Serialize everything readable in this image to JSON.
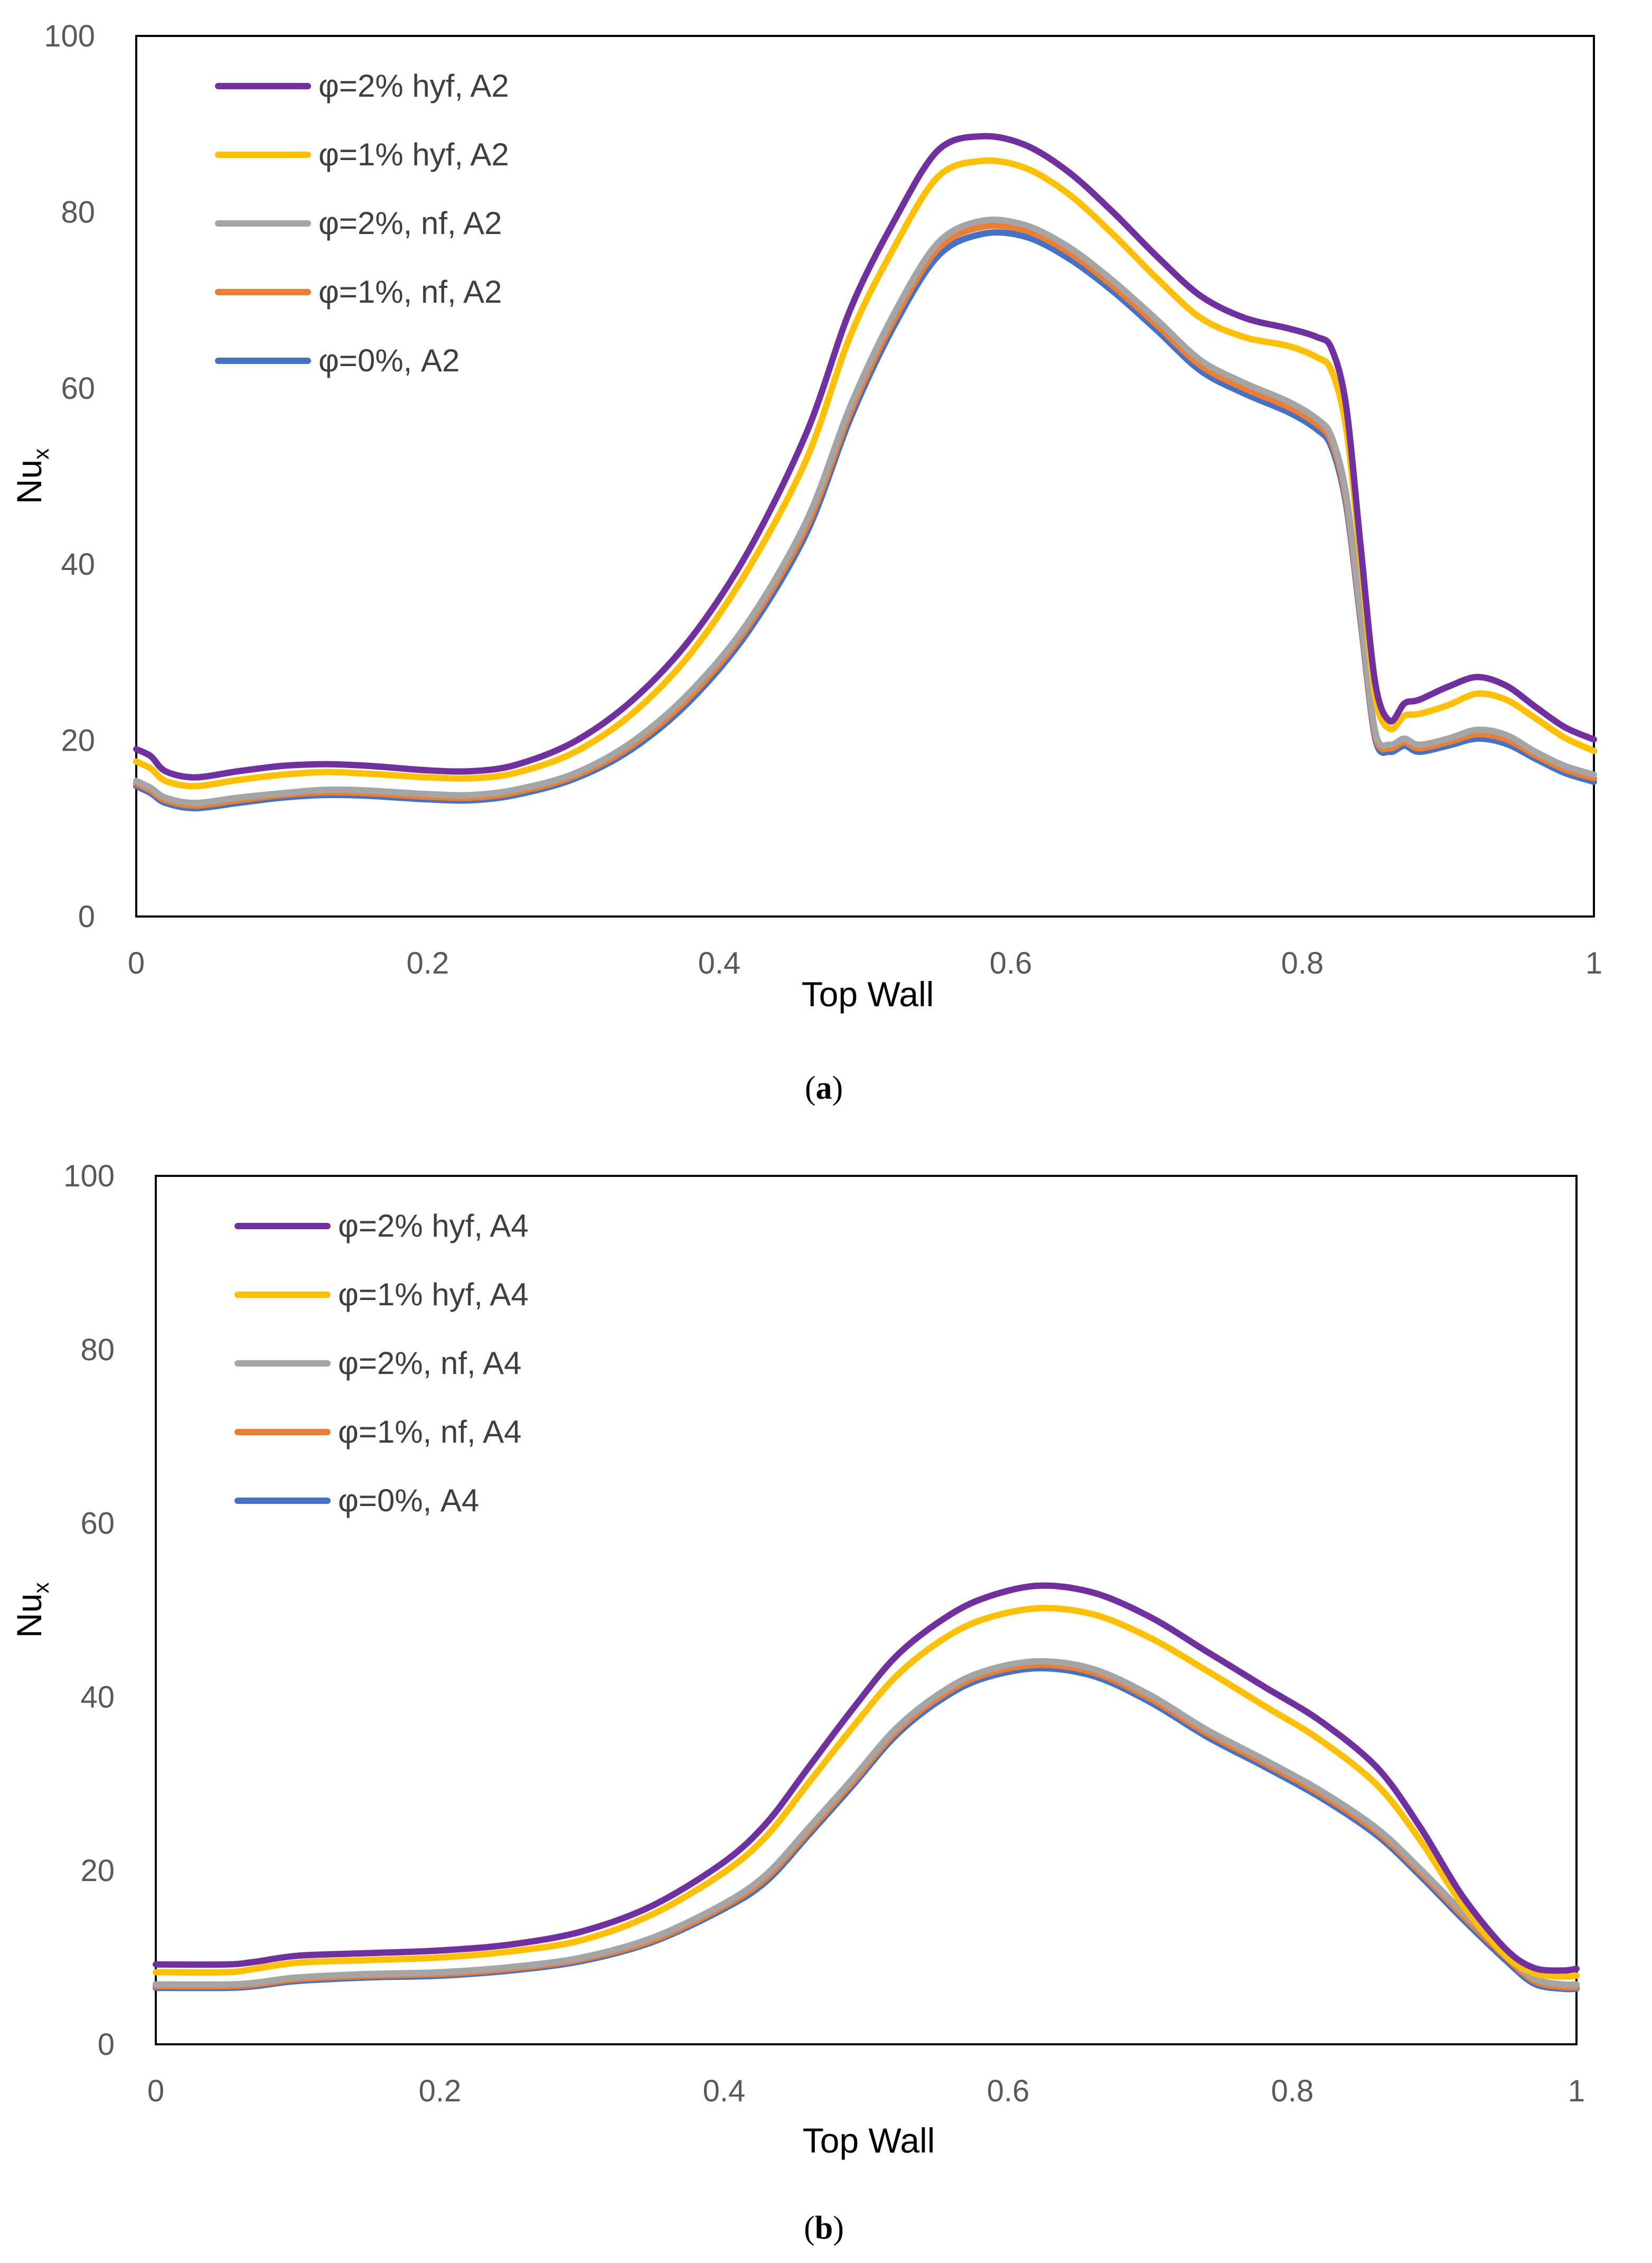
{
  "chart_data": [
    {
      "type": "line",
      "panel": "a",
      "caption_open": "(",
      "caption_letter": "a",
      "caption_close": ")",
      "xlabel": "Top Wall",
      "ylabel_main": "Nu",
      "ylabel_sub": "x",
      "xlim": [
        0,
        1
      ],
      "ylim": [
        0,
        100
      ],
      "xticks": [
        0,
        0.2,
        0.4,
        0.6,
        0.8,
        1
      ],
      "xtick_labels": [
        "0",
        "0.2",
        "0.4",
        "0.6",
        "0.8",
        "1"
      ],
      "yticks": [
        0,
        20,
        40,
        60,
        80,
        100
      ],
      "ytick_labels": [
        "0",
        "20",
        "40",
        "60",
        "80",
        "100"
      ],
      "legend_position": "top-left",
      "x": [
        0,
        0.01,
        0.02,
        0.04,
        0.07,
        0.1,
        0.13,
        0.16,
        0.2,
        0.23,
        0.26,
        0.3,
        0.34,
        0.38,
        0.42,
        0.46,
        0.49,
        0.52,
        0.55,
        0.58,
        0.61,
        0.64,
        0.67,
        0.7,
        0.73,
        0.76,
        0.79,
        0.81,
        0.82,
        0.83,
        0.84,
        0.85,
        0.86,
        0.87,
        0.88,
        0.9,
        0.92,
        0.94,
        0.96,
        0.98,
        1
      ],
      "series": [
        {
          "name": "φ=2% hyf, A2",
          "color": "#7030a0",
          "values": [
            19,
            18.2,
            16.5,
            15.8,
            16.5,
            17.1,
            17.3,
            17.1,
            16.6,
            16.5,
            17.2,
            19.8,
            24.5,
            31.5,
            41.5,
            55,
            69,
            79,
            87,
            88.6,
            87.6,
            84.5,
            80,
            75,
            70.5,
            68,
            66.8,
            65.8,
            64.5,
            58,
            42,
            26.5,
            22.2,
            24.2,
            24.6,
            26.1,
            27.2,
            26.2,
            23.8,
            21.5,
            20.1
          ]
        },
        {
          "name": "φ=1% hyf, A2",
          "color": "#ffc000",
          "values": [
            17.6,
            16.8,
            15.4,
            14.8,
            15.5,
            16.1,
            16.4,
            16.2,
            15.8,
            15.7,
            16.3,
            18.6,
            23,
            29.8,
            39.5,
            52,
            66,
            76,
            84,
            85.8,
            85,
            82,
            77.5,
            72.5,
            68,
            65.8,
            64.8,
            63.5,
            62,
            55.5,
            40.5,
            25,
            21.3,
            22.8,
            23,
            24,
            25.3,
            24.6,
            22.5,
            20.3,
            18.8
          ]
        },
        {
          "name": "φ=2%, nf, A2",
          "color": "#a5a5a5",
          "values": [
            15.4,
            14.6,
            13.5,
            12.9,
            13.5,
            14,
            14.4,
            14.3,
            13.9,
            13.8,
            14.4,
            16.2,
            19.8,
            25.5,
            33.5,
            45,
            58,
            68.5,
            76.5,
            79,
            78.5,
            76,
            72.2,
            67.8,
            63.2,
            60.6,
            58.5,
            56.5,
            54.5,
            48,
            34.5,
            21,
            19.5,
            20.2,
            19.5,
            20.2,
            21.2,
            20.6,
            18.7,
            17.1,
            16.1
          ]
        },
        {
          "name": "φ=1%, nf, A2",
          "color": "#ed7d31",
          "values": [
            15.1,
            14.3,
            13.2,
            12.6,
            13.2,
            13.8,
            14.1,
            14,
            13.6,
            13.5,
            14.1,
            15.9,
            19.4,
            25,
            33,
            44.3,
            57.3,
            67.8,
            75.8,
            78.3,
            77.9,
            75.4,
            71.6,
            67.2,
            62.6,
            60,
            57.9,
            55.9,
            53.9,
            47.4,
            34,
            20.6,
            19.1,
            19.8,
            19.1,
            19.8,
            20.7,
            20.1,
            18.3,
            16.7,
            15.7
          ]
        },
        {
          "name": "φ=0%, A2",
          "color": "#4472c4",
          "values": [
            14.8,
            14,
            12.9,
            12.3,
            12.9,
            13.5,
            13.8,
            13.7,
            13.3,
            13.2,
            13.8,
            15.6,
            19,
            24.5,
            32.4,
            43.6,
            56.6,
            67.1,
            75,
            77.5,
            77.2,
            74.7,
            71,
            66.6,
            62,
            59.4,
            57.3,
            55.3,
            53.3,
            46.8,
            33.5,
            20.2,
            18.7,
            19.4,
            18.7,
            19.4,
            20.2,
            19.6,
            17.9,
            16.3,
            15.3
          ]
        }
      ]
    },
    {
      "type": "line",
      "panel": "b",
      "caption_open": "(",
      "caption_letter": "b",
      "caption_close": ")",
      "xlabel": "Top Wall",
      "ylabel_main": "Nu",
      "ylabel_sub": "x",
      "xlim": [
        0,
        1
      ],
      "ylim": [
        0,
        100
      ],
      "xticks": [
        0,
        0.2,
        0.4,
        0.6,
        0.8,
        1
      ],
      "xtick_labels": [
        "0",
        "0.2",
        "0.4",
        "0.6",
        "0.8",
        "1"
      ],
      "yticks": [
        0,
        20,
        40,
        60,
        80,
        100
      ],
      "ytick_labels": [
        "0",
        "20",
        "40",
        "60",
        "80",
        "100"
      ],
      "legend_position": "top-left",
      "x": [
        0,
        0.05,
        0.07,
        0.1,
        0.15,
        0.2,
        0.25,
        0.3,
        0.35,
        0.4,
        0.43,
        0.46,
        0.49,
        0.52,
        0.55,
        0.58,
        0.62,
        0.66,
        0.7,
        0.74,
        0.78,
        0.82,
        0.86,
        0.89,
        0.92,
        0.95,
        0.97,
        0.99,
        1
      ],
      "series": [
        {
          "name": "φ=2% hyf, A4",
          "color": "#7030a0",
          "values": [
            9.2,
            9.2,
            9.5,
            10.2,
            10.5,
            10.8,
            11.5,
            13,
            16,
            21,
            25.5,
            32,
            38.5,
            44.5,
            48.5,
            51.2,
            52.8,
            52,
            49.2,
            45.2,
            41.2,
            37.2,
            31.8,
            25,
            17,
            11,
            8.8,
            8.5,
            8.7
          ]
        },
        {
          "name": "φ=1% hyf, A4",
          "color": "#ffc000",
          "values": [
            8.3,
            8.3,
            8.7,
            9.4,
            9.7,
            10,
            10.7,
            12,
            15,
            19.8,
            24,
            30.2,
            36.4,
            42.2,
            46.2,
            48.8,
            50.2,
            49.5,
            46.8,
            43,
            39,
            35,
            29.8,
            23.5,
            16,
            10.2,
            8.2,
            7.8,
            7.9
          ]
        },
        {
          "name": "φ=2%, nf, A4",
          "color": "#a5a5a5",
          "values": [
            6.9,
            6.9,
            7.1,
            7.7,
            8.1,
            8.3,
            8.9,
            10,
            12.3,
            16.2,
            19.6,
            25,
            30.5,
            36.2,
            40.2,
            42.8,
            44.1,
            43.2,
            40.2,
            36.2,
            32.8,
            29.2,
            24.8,
            20.2,
            15.2,
            10.5,
            7.6,
            6.9,
            6.9
          ]
        },
        {
          "name": "φ=1%, nf, A4",
          "color": "#ed7d31",
          "values": [
            6.7,
            6.7,
            6.9,
            7.5,
            7.9,
            8.1,
            8.7,
            9.8,
            12,
            15.9,
            19.2,
            24.6,
            30.1,
            35.8,
            39.8,
            42.4,
            43.7,
            42.8,
            39.8,
            35.8,
            32.4,
            28.8,
            24.4,
            19.8,
            14.8,
            10.1,
            7.3,
            6.6,
            6.6
          ]
        },
        {
          "name": "φ=0%, A4",
          "color": "#4472c4",
          "values": [
            6.5,
            6.5,
            6.7,
            7.3,
            7.7,
            7.9,
            8.5,
            9.6,
            11.8,
            15.6,
            18.8,
            24.2,
            29.7,
            35.4,
            39.4,
            42,
            43.3,
            42.4,
            39.4,
            35.4,
            32,
            28.4,
            24,
            19.4,
            14.4,
            9.7,
            7,
            6.4,
            6.4
          ]
        }
      ]
    }
  ]
}
